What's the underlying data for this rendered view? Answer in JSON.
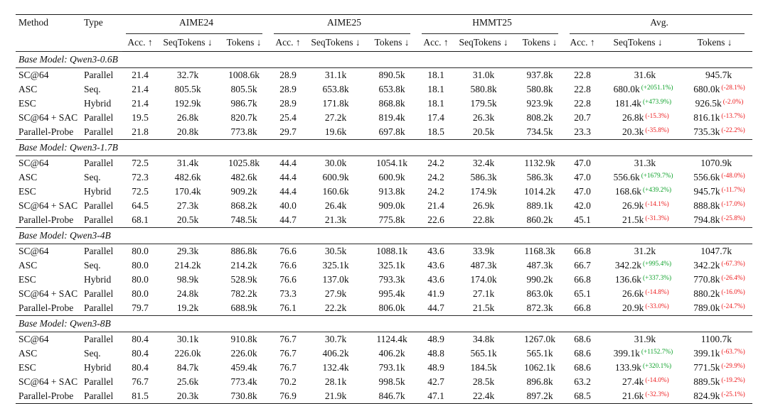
{
  "table": {
    "colors": {
      "pct_positive": "#0fa22b",
      "pct_negative": "#ed1b1d",
      "rule": "#1a1a1a"
    },
    "columns": {
      "method": "Method",
      "type": "Type",
      "groups": [
        {
          "label": "AIME24",
          "subs": [
            "Acc. ↑",
            "SeqTokens ↓",
            "Tokens ↓"
          ]
        },
        {
          "label": "AIME25",
          "subs": [
            "Acc. ↑",
            "SeqTokens ↓",
            "Tokens ↓"
          ]
        },
        {
          "label": "HMMT25",
          "subs": [
            "Acc. ↑",
            "SeqTokens ↓",
            "Tokens ↓"
          ]
        },
        {
          "label": "Avg.",
          "subs": [
            "Acc. ↑",
            "SeqTokens ↓",
            "Tokens ↓"
          ]
        }
      ]
    },
    "sections": [
      {
        "title": "Base Model: Qwen3-0.6B",
        "rows": [
          {
            "method": "SC@64",
            "type": "Parallel",
            "aime24": [
              "21.4",
              "32.7k",
              "1008.6k"
            ],
            "aime25": [
              "28.9",
              "31.1k",
              "890.5k"
            ],
            "hmmt25": [
              "18.1",
              "31.0k",
              "937.8k"
            ],
            "avg_acc": "22.8",
            "avg_seq": "31.6k",
            "avg_seq_pct": "",
            "avg_tok": "945.7k",
            "avg_tok_pct": ""
          },
          {
            "method": "ASC",
            "type": "Seq.",
            "aime24": [
              "21.4",
              "805.5k",
              "805.5k"
            ],
            "aime25": [
              "28.9",
              "653.8k",
              "653.8k"
            ],
            "hmmt25": [
              "18.1",
              "580.8k",
              "580.8k"
            ],
            "avg_acc": "22.8",
            "avg_seq": "680.0k",
            "avg_seq_pct": "(+2051.1%)",
            "avg_tok": "680.0k",
            "avg_tok_pct": "(-28.1%)"
          },
          {
            "method": "ESC",
            "type": "Hybrid",
            "aime24": [
              "21.4",
              "192.9k",
              "986.7k"
            ],
            "aime25": [
              "28.9",
              "171.8k",
              "868.8k"
            ],
            "hmmt25": [
              "18.1",
              "179.5k",
              "923.9k"
            ],
            "avg_acc": "22.8",
            "avg_seq": "181.4k",
            "avg_seq_pct": "(+473.9%)",
            "avg_tok": "926.5k",
            "avg_tok_pct": "(-2.0%)"
          },
          {
            "method": "SC@64 + SAC",
            "type": "Parallel",
            "aime24": [
              "19.5",
              "26.8k",
              "820.7k"
            ],
            "aime25": [
              "25.4",
              "27.2k",
              "819.4k"
            ],
            "hmmt25": [
              "17.4",
              "26.3k",
              "808.2k"
            ],
            "avg_acc": "20.7",
            "avg_seq": "26.8k",
            "avg_seq_pct": "(-15.3%)",
            "avg_tok": "816.1k",
            "avg_tok_pct": "(-13.7%)"
          },
          {
            "method": "Parallel-Probe",
            "type": "Parallel",
            "aime24": [
              "21.8",
              "20.8k",
              "773.8k"
            ],
            "aime25": [
              "29.7",
              "19.6k",
              "697.8k"
            ],
            "hmmt25": [
              "18.5",
              "20.5k",
              "734.5k"
            ],
            "avg_acc": "23.3",
            "avg_seq": "20.3k",
            "avg_seq_pct": "(-35.8%)",
            "avg_tok": "735.3k",
            "avg_tok_pct": "(-22.2%)"
          }
        ]
      },
      {
        "title": "Base Model: Qwen3-1.7B",
        "rows": [
          {
            "method": "SC@64",
            "type": "Parallel",
            "aime24": [
              "72.5",
              "31.4k",
              "1025.8k"
            ],
            "aime25": [
              "44.4",
              "30.0k",
              "1054.1k"
            ],
            "hmmt25": [
              "24.2",
              "32.4k",
              "1132.9k"
            ],
            "avg_acc": "47.0",
            "avg_seq": "31.3k",
            "avg_seq_pct": "",
            "avg_tok": "1070.9k",
            "avg_tok_pct": ""
          },
          {
            "method": "ASC",
            "type": "Seq.",
            "aime24": [
              "72.3",
              "482.6k",
              "482.6k"
            ],
            "aime25": [
              "44.4",
              "600.9k",
              "600.9k"
            ],
            "hmmt25": [
              "24.2",
              "586.3k",
              "586.3k"
            ],
            "avg_acc": "47.0",
            "avg_seq": "556.6k",
            "avg_seq_pct": "(+1679.7%)",
            "avg_tok": "556.6k",
            "avg_tok_pct": "(-48.0%)"
          },
          {
            "method": "ESC",
            "type": "Hybrid",
            "aime24": [
              "72.5",
              "170.4k",
              "909.2k"
            ],
            "aime25": [
              "44.4",
              "160.6k",
              "913.8k"
            ],
            "hmmt25": [
              "24.2",
              "174.9k",
              "1014.2k"
            ],
            "avg_acc": "47.0",
            "avg_seq": "168.6k",
            "avg_seq_pct": "(+439.2%)",
            "avg_tok": "945.7k",
            "avg_tok_pct": "(-11.7%)"
          },
          {
            "method": "SC@64 + SAC",
            "type": "Parallel",
            "aime24": [
              "64.5",
              "27.3k",
              "868.2k"
            ],
            "aime25": [
              "40.0",
              "26.4k",
              "909.0k"
            ],
            "hmmt25": [
              "21.4",
              "26.9k",
              "889.1k"
            ],
            "avg_acc": "42.0",
            "avg_seq": "26.9k",
            "avg_seq_pct": "(-14.1%)",
            "avg_tok": "888.8k",
            "avg_tok_pct": "(-17.0%)"
          },
          {
            "method": "Parallel-Probe",
            "type": "Parallel",
            "aime24": [
              "68.1",
              "20.5k",
              "748.5k"
            ],
            "aime25": [
              "44.7",
              "21.3k",
              "775.8k"
            ],
            "hmmt25": [
              "22.6",
              "22.8k",
              "860.2k"
            ],
            "avg_acc": "45.1",
            "avg_seq": "21.5k",
            "avg_seq_pct": "(-31.3%)",
            "avg_tok": "794.8k",
            "avg_tok_pct": "(-25.8%)"
          }
        ]
      },
      {
        "title": "Base Model: Qwen3-4B",
        "rows": [
          {
            "method": "SC@64",
            "type": "Parallel",
            "aime24": [
              "80.0",
              "29.3k",
              "886.8k"
            ],
            "aime25": [
              "76.6",
              "30.5k",
              "1088.1k"
            ],
            "hmmt25": [
              "43.6",
              "33.9k",
              "1168.3k"
            ],
            "avg_acc": "66.8",
            "avg_seq": "31.2k",
            "avg_seq_pct": "",
            "avg_tok": "1047.7k",
            "avg_tok_pct": ""
          },
          {
            "method": "ASC",
            "type": "Seq.",
            "aime24": [
              "80.0",
              "214.2k",
              "214.2k"
            ],
            "aime25": [
              "76.6",
              "325.1k",
              "325.1k"
            ],
            "hmmt25": [
              "43.6",
              "487.3k",
              "487.3k"
            ],
            "avg_acc": "66.7",
            "avg_seq": "342.2k",
            "avg_seq_pct": "(+995.4%)",
            "avg_tok": "342.2k",
            "avg_tok_pct": "(-67.3%)"
          },
          {
            "method": "ESC",
            "type": "Hybrid",
            "aime24": [
              "80.0",
              "98.9k",
              "528.9k"
            ],
            "aime25": [
              "76.6",
              "137.0k",
              "793.3k"
            ],
            "hmmt25": [
              "43.6",
              "174.0k",
              "990.2k"
            ],
            "avg_acc": "66.8",
            "avg_seq": "136.6k",
            "avg_seq_pct": "(+337.3%)",
            "avg_tok": "770.8k",
            "avg_tok_pct": "(-26.4%)"
          },
          {
            "method": "SC@64 + SAC",
            "type": "Parallel",
            "aime24": [
              "80.0",
              "24.8k",
              "782.2k"
            ],
            "aime25": [
              "73.3",
              "27.9k",
              "995.4k"
            ],
            "hmmt25": [
              "41.9",
              "27.1k",
              "863.0k"
            ],
            "avg_acc": "65.1",
            "avg_seq": "26.6k",
            "avg_seq_pct": "(-14.8%)",
            "avg_tok": "880.2k",
            "avg_tok_pct": "(-16.0%)"
          },
          {
            "method": "Parallel-Probe",
            "type": "Parallel",
            "aime24": [
              "79.7",
              "19.2k",
              "688.9k"
            ],
            "aime25": [
              "76.1",
              "22.2k",
              "806.0k"
            ],
            "hmmt25": [
              "44.7",
              "21.5k",
              "872.3k"
            ],
            "avg_acc": "66.8",
            "avg_seq": "20.9k",
            "avg_seq_pct": "(-33.0%)",
            "avg_tok": "789.0k",
            "avg_tok_pct": "(-24.7%)"
          }
        ]
      },
      {
        "title": "Base Model: Qwen3-8B",
        "rows": [
          {
            "method": "SC@64",
            "type": "Parallel",
            "aime24": [
              "80.4",
              "30.1k",
              "910.8k"
            ],
            "aime25": [
              "76.7",
              "30.7k",
              "1124.4k"
            ],
            "hmmt25": [
              "48.9",
              "34.8k",
              "1267.0k"
            ],
            "avg_acc": "68.6",
            "avg_seq": "31.9k",
            "avg_seq_pct": "",
            "avg_tok": "1100.7k",
            "avg_tok_pct": ""
          },
          {
            "method": "ASC",
            "type": "Seq.",
            "aime24": [
              "80.4",
              "226.0k",
              "226.0k"
            ],
            "aime25": [
              "76.7",
              "406.2k",
              "406.2k"
            ],
            "hmmt25": [
              "48.8",
              "565.1k",
              "565.1k"
            ],
            "avg_acc": "68.6",
            "avg_seq": "399.1k",
            "avg_seq_pct": "(+1152.7%)",
            "avg_tok": "399.1k",
            "avg_tok_pct": "(-63.7%)"
          },
          {
            "method": "ESC",
            "type": "Hybrid",
            "aime24": [
              "80.4",
              "84.7k",
              "459.4k"
            ],
            "aime25": [
              "76.7",
              "132.4k",
              "793.1k"
            ],
            "hmmt25": [
              "48.9",
              "184.5k",
              "1062.1k"
            ],
            "avg_acc": "68.6",
            "avg_seq": "133.9k",
            "avg_seq_pct": "(+320.1%)",
            "avg_tok": "771.5k",
            "avg_tok_pct": "(-29.9%)"
          },
          {
            "method": "SC@64 + SAC",
            "type": "Parallel",
            "aime24": [
              "76.7",
              "25.6k",
              "773.4k"
            ],
            "aime25": [
              "70.2",
              "28.1k",
              "998.5k"
            ],
            "hmmt25": [
              "42.7",
              "28.5k",
              "896.8k"
            ],
            "avg_acc": "63.2",
            "avg_seq": "27.4k",
            "avg_seq_pct": "(-14.0%)",
            "avg_tok": "889.5k",
            "avg_tok_pct": "(-19.2%)"
          },
          {
            "method": "Parallel-Probe",
            "type": "Parallel",
            "aime24": [
              "81.5",
              "20.3k",
              "730.8k"
            ],
            "aime25": [
              "76.9",
              "21.9k",
              "846.7k"
            ],
            "hmmt25": [
              "47.1",
              "22.4k",
              "897.2k"
            ],
            "avg_acc": "68.5",
            "avg_seq": "21.6k",
            "avg_seq_pct": "(-32.3%)",
            "avg_tok": "824.9k",
            "avg_tok_pct": "(-25.1%)"
          }
        ]
      }
    ]
  }
}
